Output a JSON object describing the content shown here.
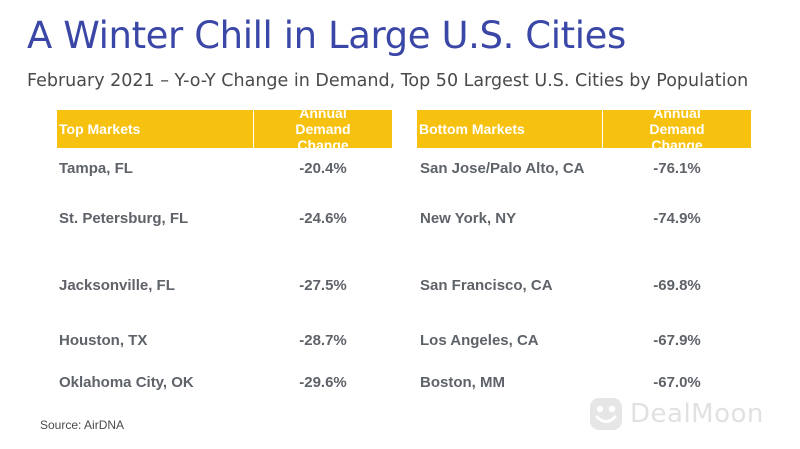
{
  "title": "A Winter Chill in Large U.S. Cities",
  "subtitle": "February 2021 – Y-o-Y Change in Demand, Top 50 Largest U.S. Cities by Population",
  "source": "Source: AirDNA",
  "watermark": "DealMoon",
  "colors": {
    "title": "#3a47a6",
    "header_bg": "#f7c10f",
    "header_text": "#ffffff",
    "cell_text": "#5e6269"
  },
  "chart_data": {
    "type": "table",
    "tables": [
      {
        "header": [
          "Top Markets",
          "Annual Demand Change"
        ],
        "rows": [
          {
            "market": "Tampa, FL",
            "change": "-20.4%"
          },
          {
            "market": "St. Petersburg, FL",
            "change": "-24.6%"
          },
          {
            "market": "Jacksonville, FL",
            "change": "-27.5%"
          },
          {
            "market": "Houston, TX",
            "change": "-28.7%"
          },
          {
            "market": "Oklahoma City, OK",
            "change": "-29.6%"
          }
        ]
      },
      {
        "header": [
          "Bottom Markets",
          "Annual Demand Change"
        ],
        "rows": [
          {
            "market": "San Jose/Palo Alto, CA",
            "change": "-76.1%"
          },
          {
            "market": "New York, NY",
            "change": "-74.9%"
          },
          {
            "market": "San Francisco, CA",
            "change": "-69.8%"
          },
          {
            "market": "Los Angeles, CA",
            "change": "-67.9%"
          },
          {
            "market": "Boston, MM",
            "change": "-67.0%"
          }
        ]
      }
    ]
  }
}
